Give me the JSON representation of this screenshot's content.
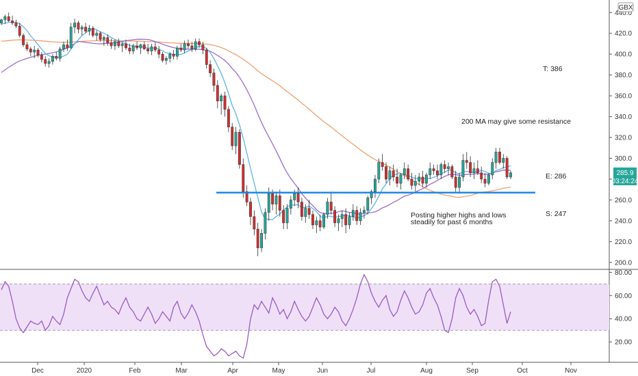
{
  "chart_data": [
    {
      "type": "candlestick",
      "currency_badge": "GBX",
      "y_ticks": [
        "440.0",
        "420.0",
        "400.0",
        "380.0",
        "360.0",
        "340.0",
        "320.0",
        "300.0",
        "280.0",
        "260.0",
        "240.0",
        "220.0",
        "200.0"
      ],
      "ylim": [
        194,
        452
      ],
      "x_tick_labels": [
        "Dec",
        "2020",
        "Feb",
        "Mar",
        "Apr",
        "May",
        "Jun",
        "Jul",
        "Aug",
        "Sep",
        "Oct",
        "Nov"
      ],
      "last_price_label": "285.9",
      "countdown_label": "03:24:24",
      "colors": {
        "up": "#26a69a",
        "down": "#d32f2f",
        "ma_fast": "#5fb3e6",
        "ma_mid": "#9a6bd0",
        "ma_slow": "#f0a070",
        "support_line": "#1e88e5"
      },
      "support_level": 267,
      "candles": [
        [
          430,
          434,
          428,
          433
        ],
        [
          433,
          438,
          429,
          436
        ],
        [
          436,
          440,
          431,
          432
        ],
        [
          432,
          437,
          428,
          430
        ],
        [
          430,
          433,
          425,
          427
        ],
        [
          427,
          430,
          416,
          418
        ],
        [
          418,
          420,
          407,
          409
        ],
        [
          409,
          412,
          403,
          405
        ],
        [
          405,
          407,
          398,
          402
        ],
        [
          402,
          408,
          396,
          404
        ],
        [
          404,
          406,
          397,
          399
        ],
        [
          399,
          402,
          392,
          395
        ],
        [
          395,
          398,
          388,
          391
        ],
        [
          391,
          396,
          387,
          393
        ],
        [
          393,
          400,
          390,
          398
        ],
        [
          398,
          402,
          394,
          396
        ],
        [
          396,
          407,
          393,
          405
        ],
        [
          405,
          412,
          402,
          409
        ],
        [
          409,
          414,
          403,
          406
        ],
        [
          406,
          430,
          405,
          426
        ],
        [
          426,
          434,
          420,
          430
        ],
        [
          430,
          432,
          420,
          424
        ],
        [
          424,
          428,
          418,
          426
        ],
        [
          426,
          430,
          420,
          422
        ],
        [
          422,
          428,
          418,
          425
        ],
        [
          425,
          427,
          416,
          418
        ],
        [
          418,
          423,
          413,
          420
        ],
        [
          420,
          422,
          412,
          414
        ],
        [
          414,
          418,
          408,
          416
        ],
        [
          416,
          419,
          408,
          411
        ],
        [
          411,
          415,
          405,
          408
        ],
        [
          408,
          414,
          404,
          412
        ],
        [
          412,
          415,
          406,
          408
        ],
        [
          408,
          411,
          402,
          410
        ],
        [
          410,
          414,
          404,
          406
        ],
        [
          406,
          410,
          400,
          403
        ],
        [
          403,
          410,
          400,
          408
        ],
        [
          408,
          412,
          404,
          406
        ],
        [
          406,
          410,
          400,
          409
        ],
        [
          409,
          412,
          404,
          405
        ],
        [
          405,
          410,
          400,
          403
        ],
        [
          403,
          410,
          399,
          407
        ],
        [
          407,
          412,
          402,
          404
        ],
        [
          404,
          408,
          396,
          400
        ],
        [
          400,
          402,
          392,
          394
        ],
        [
          394,
          398,
          390,
          396
        ],
        [
          396,
          402,
          392,
          400
        ],
        [
          400,
          404,
          395,
          398
        ],
        [
          398,
          408,
          395,
          406
        ],
        [
          406,
          410,
          402,
          404
        ],
        [
          404,
          413,
          401,
          410
        ],
        [
          410,
          414,
          405,
          408
        ],
        [
          408,
          412,
          402,
          405
        ],
        [
          405,
          415,
          403,
          412
        ],
        [
          412,
          415,
          406,
          409
        ],
        [
          409,
          412,
          400,
          404
        ],
        [
          404,
          406,
          386,
          390
        ],
        [
          390,
          394,
          378,
          382
        ],
        [
          382,
          386,
          364,
          370
        ],
        [
          370,
          375,
          348,
          355
        ],
        [
          355,
          362,
          342,
          360
        ],
        [
          360,
          364,
          340,
          347
        ],
        [
          347,
          350,
          325,
          330
        ],
        [
          330,
          334,
          308,
          312
        ],
        [
          312,
          330,
          304,
          325
        ],
        [
          325,
          328,
          290,
          294
        ],
        [
          294,
          300,
          262,
          268
        ],
        [
          268,
          274,
          254,
          258
        ],
        [
          258,
          262,
          236,
          244
        ],
        [
          244,
          250,
          226,
          232
        ],
        [
          232,
          238,
          206,
          214
        ],
        [
          214,
          232,
          210,
          228
        ],
        [
          228,
          252,
          222,
          248
        ],
        [
          248,
          272,
          240,
          266
        ],
        [
          266,
          270,
          250,
          256
        ],
        [
          256,
          268,
          246,
          264
        ],
        [
          264,
          270,
          244,
          250
        ],
        [
          250,
          255,
          232,
          238
        ],
        [
          238,
          256,
          232,
          252
        ],
        [
          252,
          264,
          246,
          260
        ],
        [
          260,
          270,
          254,
          266
        ],
        [
          266,
          272,
          252,
          258
        ],
        [
          258,
          262,
          240,
          244
        ],
        [
          244,
          256,
          238,
          252
        ],
        [
          252,
          260,
          242,
          246
        ],
        [
          246,
          250,
          232,
          236
        ],
        [
          236,
          244,
          228,
          240
        ],
        [
          240,
          246,
          230,
          234
        ],
        [
          234,
          248,
          232,
          246
        ],
        [
          246,
          262,
          242,
          258
        ],
        [
          258,
          268,
          246,
          250
        ],
        [
          250,
          254,
          234,
          238
        ],
        [
          238,
          246,
          230,
          242
        ],
        [
          242,
          250,
          234,
          246
        ],
        [
          246,
          252,
          228,
          236
        ],
        [
          236,
          248,
          232,
          244
        ],
        [
          244,
          256,
          240,
          250
        ],
        [
          250,
          254,
          236,
          240
        ],
        [
          240,
          252,
          236,
          248
        ],
        [
          248,
          254,
          242,
          250
        ],
        [
          250,
          264,
          246,
          262
        ],
        [
          262,
          270,
          256,
          268
        ],
        [
          268,
          284,
          262,
          280
        ],
        [
          280,
          300,
          276,
          296
        ],
        [
          296,
          304,
          288,
          292
        ],
        [
          292,
          296,
          276,
          280
        ],
        [
          280,
          292,
          274,
          288
        ],
        [
          288,
          294,
          278,
          282
        ],
        [
          282,
          290,
          272,
          276
        ],
        [
          276,
          286,
          270,
          284
        ],
        [
          284,
          296,
          280,
          290
        ],
        [
          290,
          294,
          278,
          280
        ],
        [
          280,
          286,
          270,
          274
        ],
        [
          274,
          284,
          268,
          278
        ],
        [
          278,
          286,
          274,
          282
        ],
        [
          282,
          288,
          272,
          276
        ],
        [
          276,
          286,
          272,
          284
        ],
        [
          284,
          296,
          280,
          290
        ],
        [
          290,
          294,
          284,
          288
        ],
        [
          288,
          294,
          280,
          284
        ],
        [
          284,
          296,
          280,
          294
        ],
        [
          294,
          298,
          286,
          290
        ],
        [
          290,
          296,
          284,
          292
        ],
        [
          292,
          294,
          280,
          282
        ],
        [
          282,
          288,
          268,
          272
        ],
        [
          272,
          286,
          266,
          282
        ],
        [
          282,
          304,
          278,
          298
        ],
        [
          298,
          306,
          290,
          296
        ],
        [
          296,
          302,
          282,
          286
        ],
        [
          286,
          296,
          280,
          290
        ],
        [
          290,
          298,
          284,
          286
        ],
        [
          286,
          292,
          276,
          280
        ],
        [
          280,
          286,
          272,
          276
        ],
        [
          276,
          286,
          274,
          284
        ],
        [
          284,
          300,
          280,
          296
        ],
        [
          296,
          310,
          290,
          306
        ],
        [
          306,
          310,
          294,
          296
        ],
        [
          296,
          304,
          290,
          300
        ],
        [
          300,
          302,
          280,
          282
        ],
        [
          282,
          288,
          280,
          286
        ]
      ],
      "rsi": {
        "ticks": [
          "80.00",
          "60.00",
          "40.00",
          "20.00"
        ],
        "ylim": [
          3,
          82
        ],
        "band": [
          30,
          70
        ],
        "color": "#9b59c6",
        "values": [
          65,
          72,
          68,
          55,
          40,
          32,
          28,
          33,
          38,
          36,
          35,
          38,
          30,
          34,
          42,
          38,
          35,
          44,
          58,
          66,
          74,
          72,
          64,
          58,
          55,
          62,
          68,
          60,
          52,
          55,
          50,
          48,
          44,
          52,
          58,
          50,
          46,
          40,
          38,
          44,
          50,
          44,
          36,
          40,
          46,
          42,
          38,
          50,
          55,
          45,
          40,
          45,
          52,
          46,
          38,
          26,
          16,
          12,
          8,
          10,
          14,
          12,
          8,
          10,
          12,
          8,
          6,
          18,
          40,
          52,
          48,
          55,
          50,
          45,
          58,
          52,
          44,
          48,
          40,
          46,
          55,
          48,
          42,
          38,
          42,
          50,
          58,
          52,
          44,
          40,
          44,
          50,
          46,
          38,
          34,
          40,
          48,
          58,
          70,
          78,
          72,
          62,
          55,
          50,
          56,
          60,
          48,
          42,
          46,
          56,
          64,
          58,
          50,
          44,
          46,
          52,
          62,
          66,
          58,
          52,
          42,
          30,
          28,
          40,
          58,
          66,
          60,
          50,
          44,
          48,
          42,
          34,
          36,
          56,
          72,
          74,
          68,
          52,
          36,
          46
        ],
        "last_index_note": "series ends near 46"
      },
      "annotations": [
        "T: 386",
        "200 MA may give some resistance",
        "E: 286",
        "Posting higher highs and lows",
        "steadily for past 6 months",
        "S: 247"
      ]
    }
  ],
  "labels": {
    "target": "T: 386",
    "resistance_note": "200 MA may give some resistance",
    "entry": "E: 286",
    "trend_note_line1": "Posting higher highs and lows",
    "trend_note_line2": "steadily for past 6 months",
    "stop": "S: 247",
    "gbx": "GBX",
    "last_price": "285.9",
    "countdown": "03:24:24"
  }
}
